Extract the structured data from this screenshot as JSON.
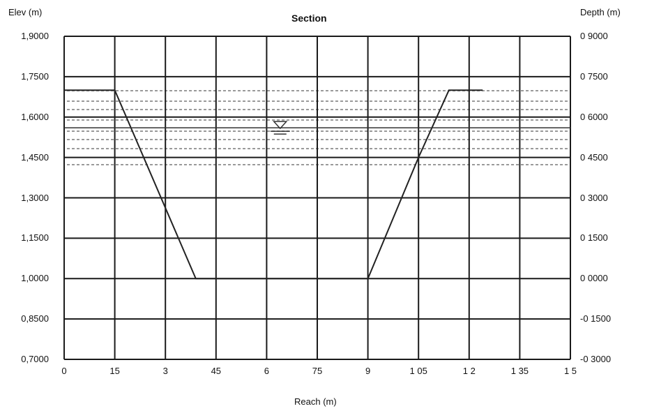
{
  "chart_data": {
    "type": "line",
    "title": "Section",
    "xlabel": "Reach (m)",
    "ylabel_left": "Elev (m)",
    "ylabel_right": "Depth (m)",
    "x_ticks": [
      "0",
      "15",
      "3",
      "45",
      "6",
      "75",
      "9",
      "1 05",
      "1 2",
      "1 35",
      "1 5"
    ],
    "x_range": [
      0,
      1.5
    ],
    "y_left_ticks": [
      "1,9000",
      "1,7500",
      "1,6000",
      "1,4500",
      "1,3000",
      "1,1500",
      "1,0000",
      "0,8500",
      "0,7000"
    ],
    "y_left_range": [
      0.7,
      1.9
    ],
    "y_right_ticks": [
      "0 9000",
      "0 7500",
      "0 6000",
      "0 4500",
      "0 3000",
      "0 1500",
      "0 0000",
      "-0 1500",
      "-0 3000"
    ],
    "y_right_range": [
      -0.3,
      0.9
    ],
    "grid": true,
    "series": [
      {
        "x": [
          0,
          0.15,
          0.39,
          0.9,
          1.05,
          1.14,
          1.24
        ],
        "y": [
          1.7,
          1.7,
          1.0,
          1.0,
          1.45,
          1.7,
          1.7
        ]
      }
    ],
    "water_level": {
      "elevation": 1.56
    }
  },
  "colors": {
    "grid": "#1a1a1a",
    "profile": "#222222",
    "water": "#333333",
    "noise": "#9a9a9a"
  }
}
